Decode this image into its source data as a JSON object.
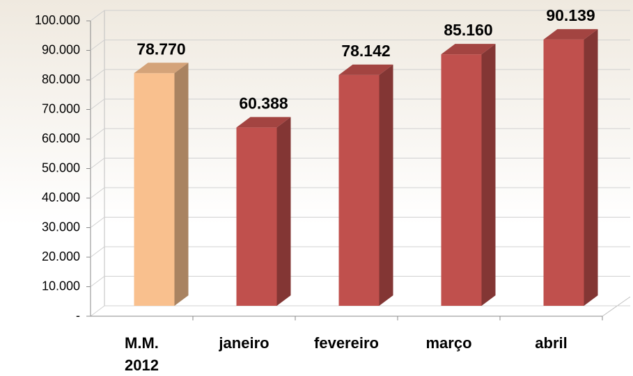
{
  "chart_data": {
    "type": "bar3d",
    "categories": [
      "M.M. 2012",
      "janeiro",
      "fevereiro",
      "março",
      "abril"
    ],
    "values": [
      78770,
      60388,
      78142,
      85160,
      90139
    ],
    "value_labels": [
      "78.770",
      "60.388",
      "78.142",
      "85.160",
      "90.139"
    ],
    "colors": [
      "#f9c08e",
      "#c0504d",
      "#c0504d",
      "#c0504d",
      "#c0504d"
    ],
    "ylim": [
      0,
      100000
    ],
    "yticks": [
      {
        "value": 0,
        "label": "-"
      },
      {
        "value": 10000,
        "label": "10.000"
      },
      {
        "value": 20000,
        "label": "20.000"
      },
      {
        "value": 30000,
        "label": "30.000"
      },
      {
        "value": 40000,
        "label": "40.000"
      },
      {
        "value": 50000,
        "label": "50.000"
      },
      {
        "value": 60000,
        "label": "60.000"
      },
      {
        "value": 70000,
        "label": "70.000"
      },
      {
        "value": 80000,
        "label": "80.000"
      },
      {
        "value": 90000,
        "label": "90.000"
      },
      {
        "value": 100000,
        "label": "100.000"
      }
    ],
    "grid": true
  }
}
